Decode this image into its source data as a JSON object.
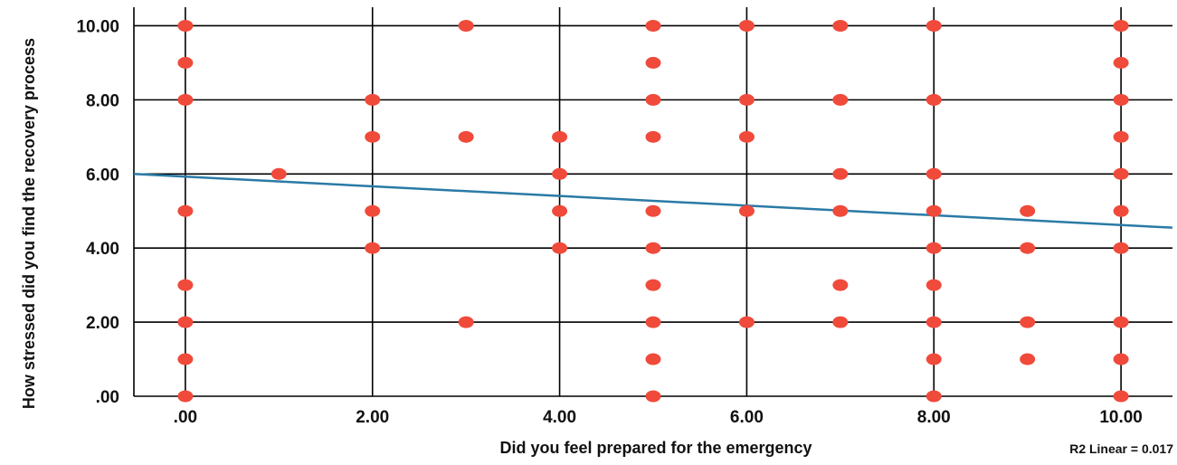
{
  "chart_data": {
    "type": "scatter",
    "title": "",
    "xlabel": "Did you feel prepared for the emergency",
    "ylabel": "How stressed did you find the recovery process",
    "xlim": [
      -0.55,
      10.55
    ],
    "ylim": [
      0,
      10.5
    ],
    "x_ticks": [
      0,
      2,
      4,
      6,
      8,
      10
    ],
    "x_tick_labels": [
      ".00",
      "2.00",
      "4.00",
      "6.00",
      "8.00",
      "10.00"
    ],
    "y_ticks": [
      0,
      2,
      4,
      6,
      8,
      10
    ],
    "y_tick_labels": [
      ".00",
      "2.00",
      "4.00",
      "6.00",
      "8.00",
      "10.00"
    ],
    "grid": true,
    "point_color": "#f04a3b",
    "line_color": "#2a7aa6",
    "points": [
      [
        0,
        10
      ],
      [
        0,
        9
      ],
      [
        0,
        8
      ],
      [
        0,
        5
      ],
      [
        0,
        3
      ],
      [
        0,
        2
      ],
      [
        0,
        1
      ],
      [
        0,
        0
      ],
      [
        1,
        6
      ],
      [
        2,
        8
      ],
      [
        2,
        7
      ],
      [
        2,
        5
      ],
      [
        2,
        4
      ],
      [
        3,
        10
      ],
      [
        3,
        7
      ],
      [
        3,
        2
      ],
      [
        4,
        7
      ],
      [
        4,
        6
      ],
      [
        4,
        5
      ],
      [
        4,
        4
      ],
      [
        5,
        10
      ],
      [
        5,
        9
      ],
      [
        5,
        8
      ],
      [
        5,
        7
      ],
      [
        5,
        5
      ],
      [
        5,
        4
      ],
      [
        5,
        3
      ],
      [
        5,
        2
      ],
      [
        5,
        1
      ],
      [
        5,
        0
      ],
      [
        6,
        10
      ],
      [
        6,
        8
      ],
      [
        6,
        7
      ],
      [
        6,
        5
      ],
      [
        6,
        2
      ],
      [
        7,
        10
      ],
      [
        7,
        8
      ],
      [
        7,
        6
      ],
      [
        7,
        5
      ],
      [
        7,
        3
      ],
      [
        7,
        2
      ],
      [
        8,
        10
      ],
      [
        8,
        8
      ],
      [
        8,
        6
      ],
      [
        8,
        5
      ],
      [
        8,
        4
      ],
      [
        8,
        3
      ],
      [
        8,
        2
      ],
      [
        8,
        1
      ],
      [
        8,
        0
      ],
      [
        9,
        5
      ],
      [
        9,
        4
      ],
      [
        9,
        2
      ],
      [
        9,
        1
      ],
      [
        10,
        10
      ],
      [
        10,
        9
      ],
      [
        10,
        8
      ],
      [
        10,
        7
      ],
      [
        10,
        6
      ],
      [
        10,
        5
      ],
      [
        10,
        4
      ],
      [
        10,
        2
      ],
      [
        10,
        1
      ],
      [
        10,
        0
      ]
    ],
    "fit_line": {
      "x": [
        -0.55,
        10.55
      ],
      "y": [
        6.0,
        4.55
      ]
    },
    "annotation": "R2 Linear = 0.017"
  }
}
